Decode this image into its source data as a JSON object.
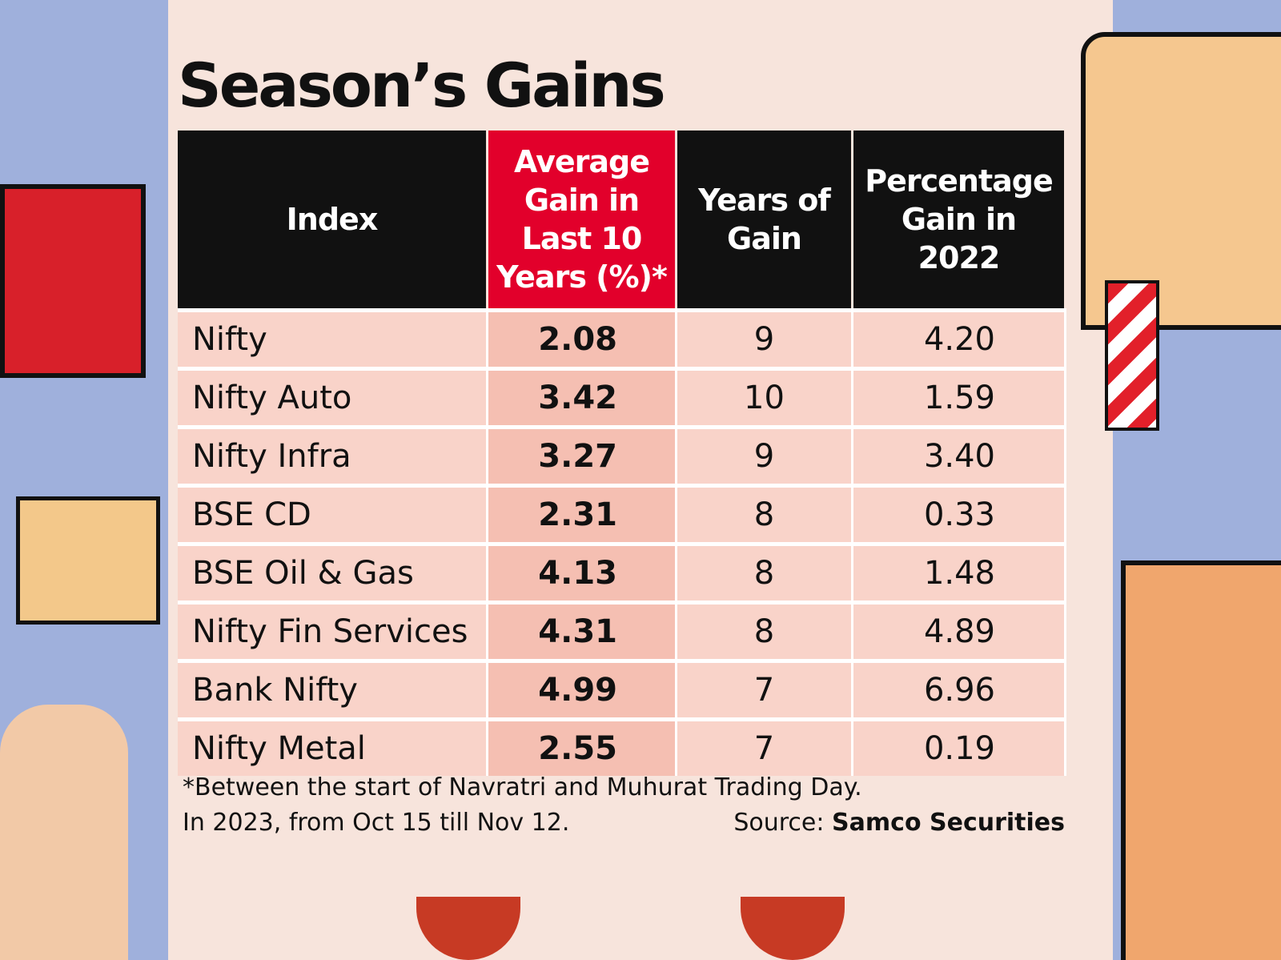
{
  "title": "Season’s Gains",
  "table": {
    "headers": [
      "Index",
      "Average Gain in Last 10 Years (%)*",
      "Years of Gain",
      "Percentage Gain in 2022"
    ],
    "rows": [
      [
        "Nifty",
        "2.08",
        "9",
        "4.20"
      ],
      [
        "Nifty Auto",
        "3.42",
        "10",
        "1.59"
      ],
      [
        "Nifty Infra",
        "3.27",
        "9",
        "3.40"
      ],
      [
        "BSE CD",
        "2.31",
        "8",
        "0.33"
      ],
      [
        "BSE Oil & Gas",
        "4.13",
        "8",
        "1.48"
      ],
      [
        "Nifty Fin Services",
        "4.31",
        "8",
        "4.89"
      ],
      [
        "Bank Nifty",
        "4.99",
        "7",
        "6.96"
      ],
      [
        "Nifty Metal",
        "2.55",
        "7",
        "0.19"
      ]
    ]
  },
  "footnote": [
    "*Between the start of Navratri and Muhurat Trading Day.",
    "In 2023, from Oct 15 till Nov 12."
  ],
  "source": {
    "label": "Source:",
    "name": "Samco Securities"
  }
}
